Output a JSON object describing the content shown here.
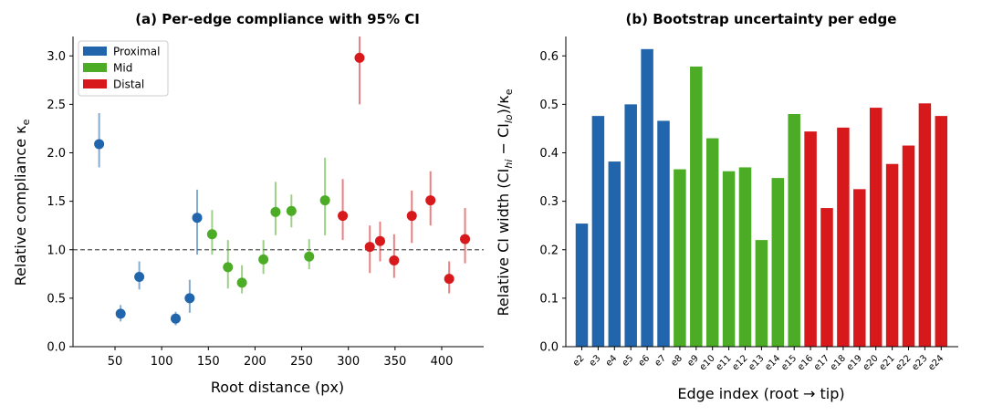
{
  "chart_data": [
    {
      "type": "scatter",
      "title": "(a) Per-edge compliance with 95% CI",
      "xlabel": "Root distance (px)",
      "ylabel": "Relative compliance κ",
      "ylabel_sub": "e",
      "xlim": [
        5,
        445
      ],
      "ylim": [
        0,
        3.2
      ],
      "xticks": [
        50,
        100,
        150,
        200,
        250,
        300,
        350,
        400
      ],
      "yticks": [
        "0.0",
        "0.5",
        "1.0",
        "1.5",
        "2.0",
        "2.5",
        "3.0"
      ],
      "reference_line": 1.0,
      "legend_position": "top-left",
      "series": [
        {
          "name": "Proximal",
          "color": "#2166ac",
          "points": [
            {
              "x": 33,
              "y": 2.09,
              "lo": 1.85,
              "hi": 2.41
            },
            {
              "x": 56,
              "y": 0.34,
              "lo": 0.26,
              "hi": 0.43
            },
            {
              "x": 76,
              "y": 0.72,
              "lo": 0.59,
              "hi": 0.88
            },
            {
              "x": 115,
              "y": 0.29,
              "lo": 0.22,
              "hi": 0.36
            },
            {
              "x": 130,
              "y": 0.5,
              "lo": 0.35,
              "hi": 0.69
            },
            {
              "x": 138,
              "y": 1.33,
              "lo": 0.95,
              "hi": 1.62
            }
          ]
        },
        {
          "name": "Mid",
          "color": "#4dac26",
          "points": [
            {
              "x": 154,
              "y": 1.16,
              "lo": 0.95,
              "hi": 1.41
            },
            {
              "x": 171,
              "y": 0.82,
              "lo": 0.6,
              "hi": 1.1
            },
            {
              "x": 186,
              "y": 0.66,
              "lo": 0.55,
              "hi": 0.84
            },
            {
              "x": 209,
              "y": 0.9,
              "lo": 0.75,
              "hi": 1.1
            },
            {
              "x": 222,
              "y": 1.39,
              "lo": 1.15,
              "hi": 1.7
            },
            {
              "x": 239,
              "y": 1.4,
              "lo": 1.23,
              "hi": 1.57
            },
            {
              "x": 258,
              "y": 0.93,
              "lo": 0.8,
              "hi": 1.11
            },
            {
              "x": 275,
              "y": 1.51,
              "lo": 1.15,
              "hi": 1.95
            }
          ]
        },
        {
          "name": "Distal",
          "color": "#d7191c",
          "points": [
            {
              "x": 294,
              "y": 1.35,
              "lo": 1.1,
              "hi": 1.73
            },
            {
              "x": 312,
              "y": 2.98,
              "lo": 2.5,
              "hi": 3.2
            },
            {
              "x": 323,
              "y": 1.03,
              "lo": 0.76,
              "hi": 1.25
            },
            {
              "x": 334,
              "y": 1.09,
              "lo": 0.88,
              "hi": 1.29
            },
            {
              "x": 349,
              "y": 0.89,
              "lo": 0.71,
              "hi": 1.16
            },
            {
              "x": 368,
              "y": 1.35,
              "lo": 1.07,
              "hi": 1.61
            },
            {
              "x": 388,
              "y": 1.51,
              "lo": 1.25,
              "hi": 1.81
            },
            {
              "x": 408,
              "y": 0.7,
              "lo": 0.55,
              "hi": 0.88
            },
            {
              "x": 425,
              "y": 1.11,
              "lo": 0.86,
              "hi": 1.43
            }
          ]
        }
      ]
    },
    {
      "type": "bar",
      "title": "(b) Bootstrap uncertainty per edge",
      "xlabel": "Edge index (root → tip)",
      "ylabel": "Relative CI width (CI",
      "ylabel_parts": [
        "hi",
        " − CI",
        "lo",
        ")/κ",
        "e"
      ],
      "ylim": [
        0,
        0.64
      ],
      "yticks": [
        "0.0",
        "0.1",
        "0.2",
        "0.3",
        "0.4",
        "0.5",
        "0.6"
      ],
      "categories": [
        "e2",
        "e3",
        "e4",
        "e5",
        "e6",
        "e7",
        "e8",
        "e9",
        "e10",
        "e11",
        "e12",
        "e13",
        "e14",
        "e15",
        "e16",
        "e17",
        "e18",
        "e19",
        "e20",
        "e21",
        "e22",
        "e23",
        "e24"
      ],
      "values": [
        0.254,
        0.476,
        0.382,
        0.5,
        0.614,
        0.466,
        0.366,
        0.578,
        0.43,
        0.362,
        0.37,
        0.22,
        0.348,
        0.48,
        0.444,
        0.286,
        0.452,
        0.325,
        0.493,
        0.377,
        0.415,
        0.502,
        0.476
      ],
      "group_colors": [
        "#2166ac",
        "#2166ac",
        "#2166ac",
        "#2166ac",
        "#2166ac",
        "#2166ac",
        "#4dac26",
        "#4dac26",
        "#4dac26",
        "#4dac26",
        "#4dac26",
        "#4dac26",
        "#4dac26",
        "#4dac26",
        "#d7191c",
        "#d7191c",
        "#d7191c",
        "#d7191c",
        "#d7191c",
        "#d7191c",
        "#d7191c",
        "#d7191c",
        "#d7191c"
      ]
    }
  ]
}
